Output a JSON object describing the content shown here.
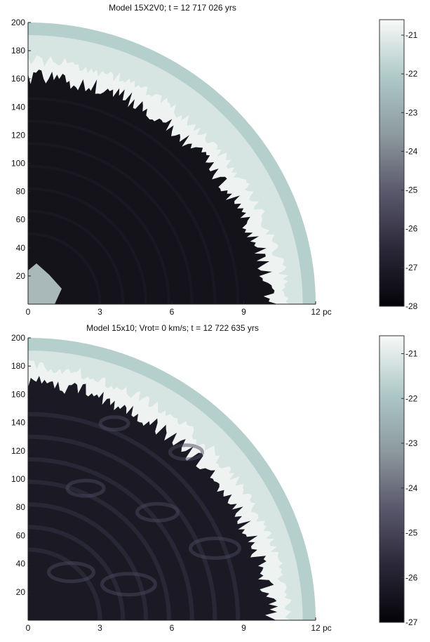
{
  "chart_data": [
    {
      "type": "heatmap",
      "title": "Model 15X2V0; t = 12 717 026 yrs",
      "xlabel": "",
      "ylabel": "",
      "x_unit": "pc",
      "x_ticks": [
        0,
        3,
        6,
        9,
        12
      ],
      "x_tick_labels": [
        "0",
        "3",
        "6",
        "9",
        "12"
      ],
      "xlim": [
        0,
        12
      ],
      "y_ticks": [
        20,
        40,
        60,
        80,
        100,
        120,
        140,
        160,
        180,
        200
      ],
      "ylim": [
        0,
        200
      ],
      "colorbar": {
        "ticks": [
          -21,
          -22,
          -23,
          -24,
          -25,
          -26,
          -27,
          -28
        ],
        "range": [
          -28,
          -20.6
        ],
        "colors": [
          "#050308",
          "#2a2838",
          "#5a586c",
          "#8d9a9f",
          "#aec9c7",
          "#f7f9f8"
        ]
      },
      "field_color": "#141319"
    },
    {
      "type": "heatmap",
      "title": "Model 15x10; Vrot= 0 km/s; t = 12 722 635 yrs",
      "xlabel": "",
      "ylabel": "",
      "x_unit": "pc",
      "x_ticks": [
        0,
        3,
        6,
        9,
        12
      ],
      "x_tick_labels": [
        "0",
        "3",
        "6",
        "9",
        "12"
      ],
      "xlim": [
        0,
        12
      ],
      "y_ticks": [
        20,
        40,
        60,
        80,
        100,
        120,
        140,
        160,
        180,
        200
      ],
      "ylim": [
        0,
        200
      ],
      "colorbar": {
        "ticks": [
          -21,
          -22,
          -23,
          -24,
          -25,
          -26,
          -27
        ],
        "range": [
          -27,
          -20.6
        ],
        "colors": [
          "#050308",
          "#2a2838",
          "#5a586c",
          "#8d9a9f",
          "#aec9c7",
          "#f7f9f8"
        ]
      },
      "field_color": "#1b1a24"
    }
  ]
}
